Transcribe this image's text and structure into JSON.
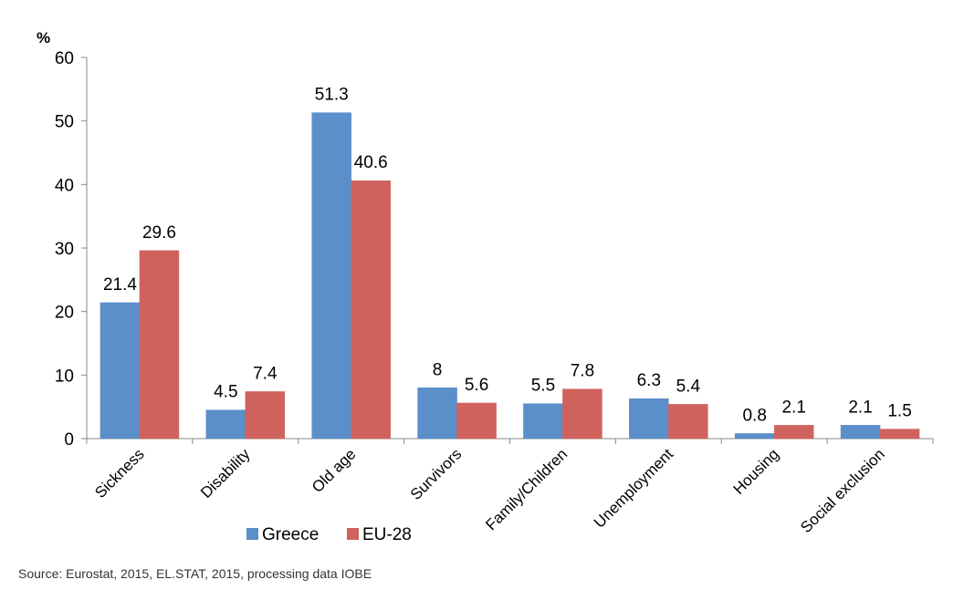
{
  "chart_data": {
    "type": "bar",
    "unit_label": "%",
    "categories": [
      "Sickness",
      "Disability",
      "Old age",
      "Survivors",
      "Family/Children",
      "Unemployment",
      "Housing",
      "Social exclusion"
    ],
    "series": [
      {
        "name": "Greece",
        "color": "#5b8fc9",
        "values": [
          21.4,
          4.5,
          51.3,
          8,
          5.5,
          6.3,
          0.8,
          2.1
        ],
        "labels": [
          "21.4",
          "4.5",
          "51.3",
          "8",
          "5.5",
          "6.3",
          "0.8",
          "2.1"
        ]
      },
      {
        "name": "EU-28",
        "color": "#d0625e",
        "values": [
          29.6,
          7.4,
          40.6,
          5.6,
          7.8,
          5.4,
          2.1,
          1.5
        ],
        "labels": [
          "29.6",
          "7.4",
          "40.6",
          "5.6",
          "7.8",
          "5.4",
          "2.1",
          "1.5"
        ]
      }
    ],
    "yticks": [
      "0",
      "10",
      "20",
      "30",
      "40",
      "50",
      "60"
    ],
    "ylim": [
      0,
      60
    ],
    "grid": false,
    "legend_position": "bottom"
  },
  "source": "Source: Eurostat, 2015, EL.STAT, 2015, processing data IOBE"
}
